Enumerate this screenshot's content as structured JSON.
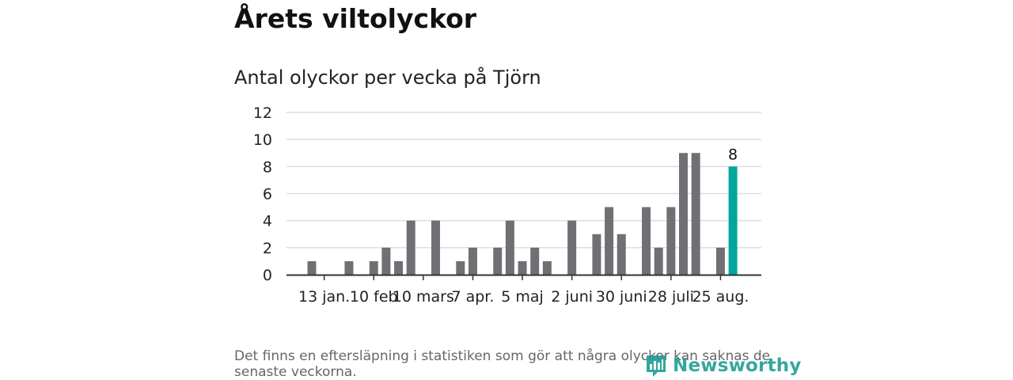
{
  "title": "Årets viltolyckor",
  "subtitle": "Antal olyckor per vecka på Tjörn",
  "footnote": "Det finns en eftersläpning i statistiken som gör att några olyckor kan saknas de senaste veckorna.",
  "brand": "Newsworthy",
  "colors": {
    "bar": "#707074",
    "highlight": "#00a79d",
    "grid": "#dddddd",
    "axis": "#333333",
    "brand": "#1f9e93"
  },
  "chart_data": {
    "type": "bar",
    "ylim": [
      0,
      12
    ],
    "yticks": [
      0,
      2,
      4,
      6,
      8,
      10,
      12
    ],
    "x_tick_labels": [
      "13 jan.",
      "10 feb",
      "10 mars",
      "7 apr.",
      "5 maj",
      "2 juni",
      "30 juni",
      "28 juli",
      "25 aug."
    ],
    "x_tick_week_index": [
      1,
      5,
      9,
      13,
      17,
      21,
      25,
      29,
      33
    ],
    "values": [
      1,
      0,
      0,
      1,
      0,
      1,
      2,
      1,
      4,
      0,
      4,
      0,
      1,
      2,
      0,
      2,
      4,
      1,
      2,
      1,
      0,
      4,
      0,
      3,
      5,
      3,
      0,
      5,
      2,
      5,
      9,
      9,
      0,
      2,
      8
    ],
    "highlight_index": 34,
    "highlight_label": "8",
    "grid": true
  }
}
